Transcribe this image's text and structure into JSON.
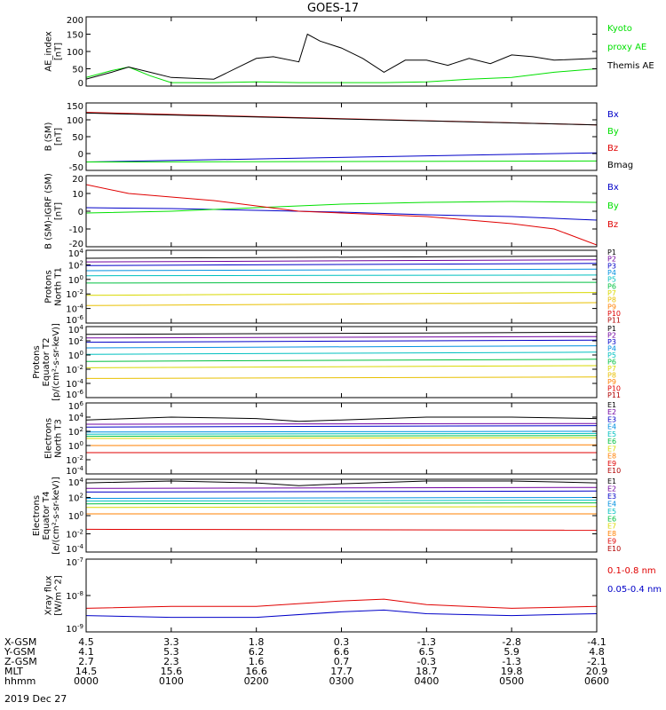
{
  "title": "GOES-17",
  "footer": {
    "rows": [
      {
        "label": "X-GSM",
        "values": [
          "4.5",
          "3.3",
          "1.8",
          "0.3",
          "-1.3",
          "-2.8",
          "-4.1"
        ]
      },
      {
        "label": "Y-GSM",
        "values": [
          "4.1",
          "5.3",
          "6.2",
          "6.6",
          "6.5",
          "5.9",
          "4.8"
        ]
      },
      {
        "label": "Z-GSM",
        "values": [
          "2.7",
          "2.3",
          "1.6",
          "0.7",
          "-0.3",
          "-1.3",
          "-2.1"
        ]
      },
      {
        "label": "MLT",
        "values": [
          "14.5",
          "15.6",
          "16.6",
          "17.7",
          "18.7",
          "19.8",
          "20.9"
        ]
      },
      {
        "label": "hhmm",
        "values": [
          "0000",
          "0100",
          "0200",
          "0300",
          "0400",
          "0500",
          "0600"
        ]
      }
    ],
    "date": "2019 Dec 27"
  },
  "chart_data": [
    {
      "id": "ae",
      "type": "line",
      "ylabel": [
        "AE_index",
        "[nT]"
      ],
      "ylim": [
        0,
        200
      ],
      "yticks": [
        "0",
        "50",
        "100",
        "150",
        "200"
      ],
      "yscale": "linear",
      "legend": [
        {
          "text": "Kyoto",
          "color": "#00e000"
        },
        {
          "text": "proxy AE",
          "color": "#00e000"
        },
        {
          "text": "Themis AE",
          "color": "#000000"
        }
      ],
      "series": [
        {
          "name": "Kyoto",
          "color": "#00e000",
          "x": [
            0,
            0.3,
            0.5,
            0.75,
            1.0,
            1.5,
            2.0,
            2.5,
            3.0,
            3.5,
            4.0,
            4.5,
            5.0,
            5.5,
            6.0
          ],
          "y": [
            25,
            45,
            55,
            30,
            10,
            10,
            12,
            10,
            10,
            10,
            12,
            20,
            25,
            40,
            50
          ]
        },
        {
          "name": "Themis AE",
          "color": "#000000",
          "x": [
            0,
            0.3,
            0.5,
            0.75,
            1.0,
            1.5,
            2.0,
            2.2,
            2.5,
            2.6,
            2.75,
            3.0,
            3.25,
            3.5,
            3.75,
            4.0,
            4.25,
            4.5,
            4.75,
            5.0,
            5.25,
            5.5,
            6.0
          ],
          "y": [
            20,
            40,
            55,
            40,
            25,
            20,
            80,
            85,
            70,
            150,
            130,
            110,
            80,
            40,
            75,
            75,
            60,
            80,
            65,
            90,
            85,
            75,
            80
          ]
        }
      ]
    },
    {
      "id": "b",
      "type": "line",
      "ylabel": [
        "B (SM)",
        "[nT]"
      ],
      "ylim": [
        -50,
        150
      ],
      "yticks": [
        "-50",
        "0",
        "50",
        "100",
        "150"
      ],
      "yscale": "linear",
      "legend": [
        {
          "text": "Bx",
          "color": "#0000c8"
        },
        {
          "text": "By",
          "color": "#00e000"
        },
        {
          "text": "Bz",
          "color": "#e00000"
        },
        {
          "text": "Bmag",
          "color": "#000000"
        }
      ],
      "series": [
        {
          "name": "Bx",
          "color": "#0000c8",
          "x": [
            0,
            6
          ],
          "y": [
            -25,
            2
          ]
        },
        {
          "name": "By",
          "color": "#00e000",
          "x": [
            0,
            6
          ],
          "y": [
            -25,
            -22
          ]
        },
        {
          "name": "Bz",
          "color": "#e00000",
          "x": [
            0,
            6
          ],
          "y": [
            122,
            85
          ]
        },
        {
          "name": "Bmag",
          "color": "#000000",
          "x": [
            0,
            6
          ],
          "y": [
            120,
            85
          ]
        }
      ]
    },
    {
      "id": "bigrf",
      "type": "line",
      "ylabel": [
        "B (SM)-IGRF (SM)",
        "[nT]"
      ],
      "ylim": [
        -20,
        20
      ],
      "yticks": [
        "-20",
        "-10",
        "0",
        "10",
        "20"
      ],
      "yscale": "linear",
      "legend": [
        {
          "text": "Bx",
          "color": "#0000c8"
        },
        {
          "text": "By",
          "color": "#00e000"
        },
        {
          "text": "Bz",
          "color": "#e00000"
        }
      ],
      "series": [
        {
          "name": "Bx",
          "color": "#0000c8",
          "x": [
            0,
            1,
            2,
            3,
            4,
            5,
            6
          ],
          "y": [
            2,
            1.5,
            0.5,
            -0.5,
            -2,
            -3,
            -5
          ]
        },
        {
          "name": "By",
          "color": "#00e000",
          "x": [
            0,
            1,
            2,
            3,
            4,
            5,
            6
          ],
          "y": [
            -1,
            0,
            2,
            4,
            5,
            5.5,
            5
          ]
        },
        {
          "name": "Bz",
          "color": "#e00000",
          "x": [
            0,
            0.5,
            1,
            1.5,
            2,
            2.5,
            3,
            3.5,
            4,
            4.5,
            5,
            5.5,
            6
          ],
          "y": [
            15,
            10,
            8,
            6,
            3,
            0,
            -1,
            -2,
            -3,
            -5,
            -7,
            -10,
            -19
          ]
        }
      ]
    },
    {
      "id": "p_north",
      "type": "line",
      "ylabel": [
        "Protons",
        "North T1"
      ],
      "ylim": [
        -6,
        4
      ],
      "yticks": [
        "10^-6",
        "10^-4",
        "10^-2",
        "10^0",
        "10^2",
        "10^4"
      ],
      "yscale": "log",
      "legend": [
        {
          "text": "P1",
          "color": "#000000"
        },
        {
          "text": "P2",
          "color": "#7000a0"
        },
        {
          "text": "P3",
          "color": "#0000c8"
        },
        {
          "text": "P4",
          "color": "#0090e0"
        },
        {
          "text": "P5",
          "color": "#00c0c0"
        },
        {
          "text": "P6",
          "color": "#00c040"
        },
        {
          "text": "P7",
          "color": "#d8d800"
        },
        {
          "text": "P8",
          "color": "#e8c000"
        },
        {
          "text": "P9",
          "color": "#ff8000"
        },
        {
          "text": "P10",
          "color": "#e00000"
        },
        {
          "text": "P11",
          "color": "#b00000"
        }
      ],
      "series": [
        {
          "name": "P1",
          "color": "#000000",
          "x": [
            0,
            6
          ],
          "y": [
            2.9,
            3.2
          ]
        },
        {
          "name": "P2",
          "color": "#7000a0",
          "x": [
            0,
            6
          ],
          "y": [
            2.4,
            2.7
          ]
        },
        {
          "name": "P3",
          "color": "#0000c8",
          "x": [
            0,
            6
          ],
          "y": [
            1.9,
            2.2
          ]
        },
        {
          "name": "P4",
          "color": "#0090e0",
          "x": [
            0,
            6
          ],
          "y": [
            1.2,
            1.4
          ]
        },
        {
          "name": "P5",
          "color": "#00c0c0",
          "x": [
            0,
            6
          ],
          "y": [
            0.5,
            0.6
          ]
        },
        {
          "name": "P6",
          "color": "#00c040",
          "x": [
            0,
            6
          ],
          "y": [
            -0.5,
            -0.4
          ]
        },
        {
          "name": "P7",
          "color": "#d8d800",
          "x": [
            0,
            6
          ],
          "y": [
            -2.2,
            -1.8
          ]
        },
        {
          "name": "P8",
          "color": "#e8c000",
          "x": [
            0,
            6
          ],
          "y": [
            -3.6,
            -3.2
          ]
        }
      ]
    },
    {
      "id": "p_equator",
      "type": "line",
      "ylabel": [
        "Protons",
        "Equator T2",
        "[p/(cm²-s-sr-keV)]"
      ],
      "ylim": [
        -6,
        4
      ],
      "yticks": [
        "10^-6",
        "10^-4",
        "10^-2",
        "10^0",
        "10^2",
        "10^4"
      ],
      "yscale": "log",
      "legend": [
        {
          "text": "P1",
          "color": "#000000"
        },
        {
          "text": "P2",
          "color": "#7000a0"
        },
        {
          "text": "P3",
          "color": "#0000c8"
        },
        {
          "text": "P4",
          "color": "#0090e0"
        },
        {
          "text": "P5",
          "color": "#00c0c0"
        },
        {
          "text": "P6",
          "color": "#00c040"
        },
        {
          "text": "P7",
          "color": "#d8d800"
        },
        {
          "text": "P8",
          "color": "#e8c000"
        },
        {
          "text": "P9",
          "color": "#ff8000"
        },
        {
          "text": "P10",
          "color": "#e00000"
        },
        {
          "text": "P11",
          "color": "#b00000"
        }
      ],
      "series": [
        {
          "name": "P1",
          "color": "#000000",
          "x": [
            0,
            6
          ],
          "y": [
            2.9,
            3.2
          ]
        },
        {
          "name": "P2",
          "color": "#7000a0",
          "x": [
            0,
            6
          ],
          "y": [
            2.4,
            2.6
          ]
        },
        {
          "name": "P3",
          "color": "#0000c8",
          "x": [
            0,
            6
          ],
          "y": [
            1.8,
            2.1
          ]
        },
        {
          "name": "P4",
          "color": "#0090e0",
          "x": [
            0,
            6
          ],
          "y": [
            1.0,
            1.3
          ]
        },
        {
          "name": "P5",
          "color": "#00c0c0",
          "x": [
            0,
            6
          ],
          "y": [
            0.1,
            0.4
          ]
        },
        {
          "name": "P6",
          "color": "#00c040",
          "x": [
            0,
            6
          ],
          "y": [
            -0.9,
            -0.6
          ]
        },
        {
          "name": "P7",
          "color": "#d8d800",
          "x": [
            0,
            6
          ],
          "y": [
            -1.8,
            -1.5
          ]
        },
        {
          "name": "P8",
          "color": "#e8c000",
          "x": [
            0,
            6
          ],
          "y": [
            -3.3,
            -3.1
          ]
        }
      ]
    },
    {
      "id": "e_north",
      "type": "line",
      "ylabel": [
        "Electrons",
        "North T3"
      ],
      "ylim": [
        -4,
        6
      ],
      "yticks": [
        "10^-4",
        "10^-2",
        "10^0",
        "10^2",
        "10^4",
        "10^6"
      ],
      "yscale": "log",
      "legend": [
        {
          "text": "E1",
          "color": "#000000"
        },
        {
          "text": "E2",
          "color": "#7000a0"
        },
        {
          "text": "E3",
          "color": "#0000c8"
        },
        {
          "text": "E4",
          "color": "#0090e0"
        },
        {
          "text": "E5",
          "color": "#00c0c0"
        },
        {
          "text": "E6",
          "color": "#00c040"
        },
        {
          "text": "E7",
          "color": "#d8d800"
        },
        {
          "text": "E8",
          "color": "#ff8000"
        },
        {
          "text": "E9",
          "color": "#e00000"
        },
        {
          "text": "E10",
          "color": "#b00000"
        }
      ],
      "series": [
        {
          "name": "E1",
          "color": "#000000",
          "x": [
            0,
            1,
            2,
            2.5,
            3,
            4,
            5,
            6
          ],
          "y": [
            3.6,
            4.0,
            3.8,
            3.4,
            3.6,
            4.0,
            4.0,
            3.8
          ]
        },
        {
          "name": "E2",
          "color": "#7000a0",
          "x": [
            0,
            6
          ],
          "y": [
            3.0,
            3.1
          ]
        },
        {
          "name": "E3",
          "color": "#0000c8",
          "x": [
            0,
            6
          ],
          "y": [
            2.6,
            2.8
          ]
        },
        {
          "name": "E4",
          "color": "#0090e0",
          "x": [
            0,
            6
          ],
          "y": [
            1.9,
            2.0
          ]
        },
        {
          "name": "E5",
          "color": "#00c0c0",
          "x": [
            0,
            6
          ],
          "y": [
            1.6,
            1.7
          ]
        },
        {
          "name": "E6",
          "color": "#00c040",
          "x": [
            0,
            6
          ],
          "y": [
            1.3,
            1.4
          ]
        },
        {
          "name": "E7",
          "color": "#d8d800",
          "x": [
            0,
            6
          ],
          "y": [
            1.0,
            1.1
          ]
        },
        {
          "name": "E8",
          "color": "#ff8000",
          "x": [
            0,
            6
          ],
          "y": [
            0.0,
            0.1
          ]
        },
        {
          "name": "E9",
          "color": "#e00000",
          "x": [
            0,
            6
          ],
          "y": [
            -1.0,
            -1.0
          ]
        }
      ]
    },
    {
      "id": "e_equator",
      "type": "line",
      "ylabel": [
        "Electrons",
        "Equator T4",
        "[e/(cm²-s-sr-keV)]"
      ],
      "ylim": [
        -4,
        4
      ],
      "yticks": [
        "10^-4",
        "10^-2",
        "10^0",
        "10^2",
        "10^4"
      ],
      "yscale": "log",
      "legend": [
        {
          "text": "E1",
          "color": "#000000"
        },
        {
          "text": "E2",
          "color": "#7000a0"
        },
        {
          "text": "E3",
          "color": "#0000c8"
        },
        {
          "text": "E4",
          "color": "#0090e0"
        },
        {
          "text": "E5",
          "color": "#00c0c0"
        },
        {
          "text": "E6",
          "color": "#00c040"
        },
        {
          "text": "E7",
          "color": "#d8d800"
        },
        {
          "text": "E8",
          "color": "#ff8000"
        },
        {
          "text": "E9",
          "color": "#e00000"
        },
        {
          "text": "E10",
          "color": "#b00000"
        }
      ],
      "series": [
        {
          "name": "E1",
          "color": "#000000",
          "x": [
            0,
            1,
            2,
            2.5,
            3,
            4,
            5,
            6
          ],
          "y": [
            3.6,
            3.8,
            3.6,
            3.3,
            3.5,
            3.8,
            3.8,
            3.6
          ]
        },
        {
          "name": "E2",
          "color": "#7000a0",
          "x": [
            0,
            6
          ],
          "y": [
            3.0,
            3.1
          ]
        },
        {
          "name": "E3",
          "color": "#0000c8",
          "x": [
            0,
            6
          ],
          "y": [
            2.6,
            2.7
          ]
        },
        {
          "name": "E4",
          "color": "#0090e0",
          "x": [
            0,
            6
          ],
          "y": [
            1.9,
            2.0
          ]
        },
        {
          "name": "E5",
          "color": "#00c0c0",
          "x": [
            0,
            6
          ],
          "y": [
            1.6,
            1.7
          ]
        },
        {
          "name": "E6",
          "color": "#00c040",
          "x": [
            0,
            6
          ],
          "y": [
            1.3,
            1.4
          ]
        },
        {
          "name": "E7",
          "color": "#d8d800",
          "x": [
            0,
            6
          ],
          "y": [
            0.9,
            1.0
          ]
        },
        {
          "name": "E8",
          "color": "#ff8000",
          "x": [
            0,
            6
          ],
          "y": [
            0.2,
            0.2
          ]
        },
        {
          "name": "E9",
          "color": "#e00000",
          "x": [
            0,
            6
          ],
          "y": [
            -1.5,
            -1.6
          ]
        }
      ]
    },
    {
      "id": "xray",
      "type": "line",
      "ylabel": [
        "Xray flux",
        "[W/m^2]"
      ],
      "ylim": [
        -9,
        -7
      ],
      "yticks": [
        "10^-9",
        "10^-8",
        "10^-7"
      ],
      "yscale": "log",
      "legend": [
        {
          "text": "0.1-0.8 nm",
          "color": "#e00000"
        },
        {
          "text": "0.05-0.4 nm",
          "color": "#0000c8"
        }
      ],
      "series": [
        {
          "name": "0.1-0.8 nm",
          "color": "#e00000",
          "x": [
            0,
            1,
            2,
            3,
            3.5,
            4,
            5,
            6
          ],
          "y": [
            -8.35,
            -8.3,
            -8.3,
            -8.15,
            -8.1,
            -8.25,
            -8.35,
            -8.3
          ]
        },
        {
          "name": "0.05-0.4 nm",
          "color": "#0000c8",
          "x": [
            0,
            1,
            2,
            3,
            3.5,
            4,
            5,
            6
          ],
          "y": [
            -8.55,
            -8.6,
            -8.6,
            -8.45,
            -8.4,
            -8.5,
            -8.55,
            -8.5
          ]
        }
      ]
    }
  ]
}
